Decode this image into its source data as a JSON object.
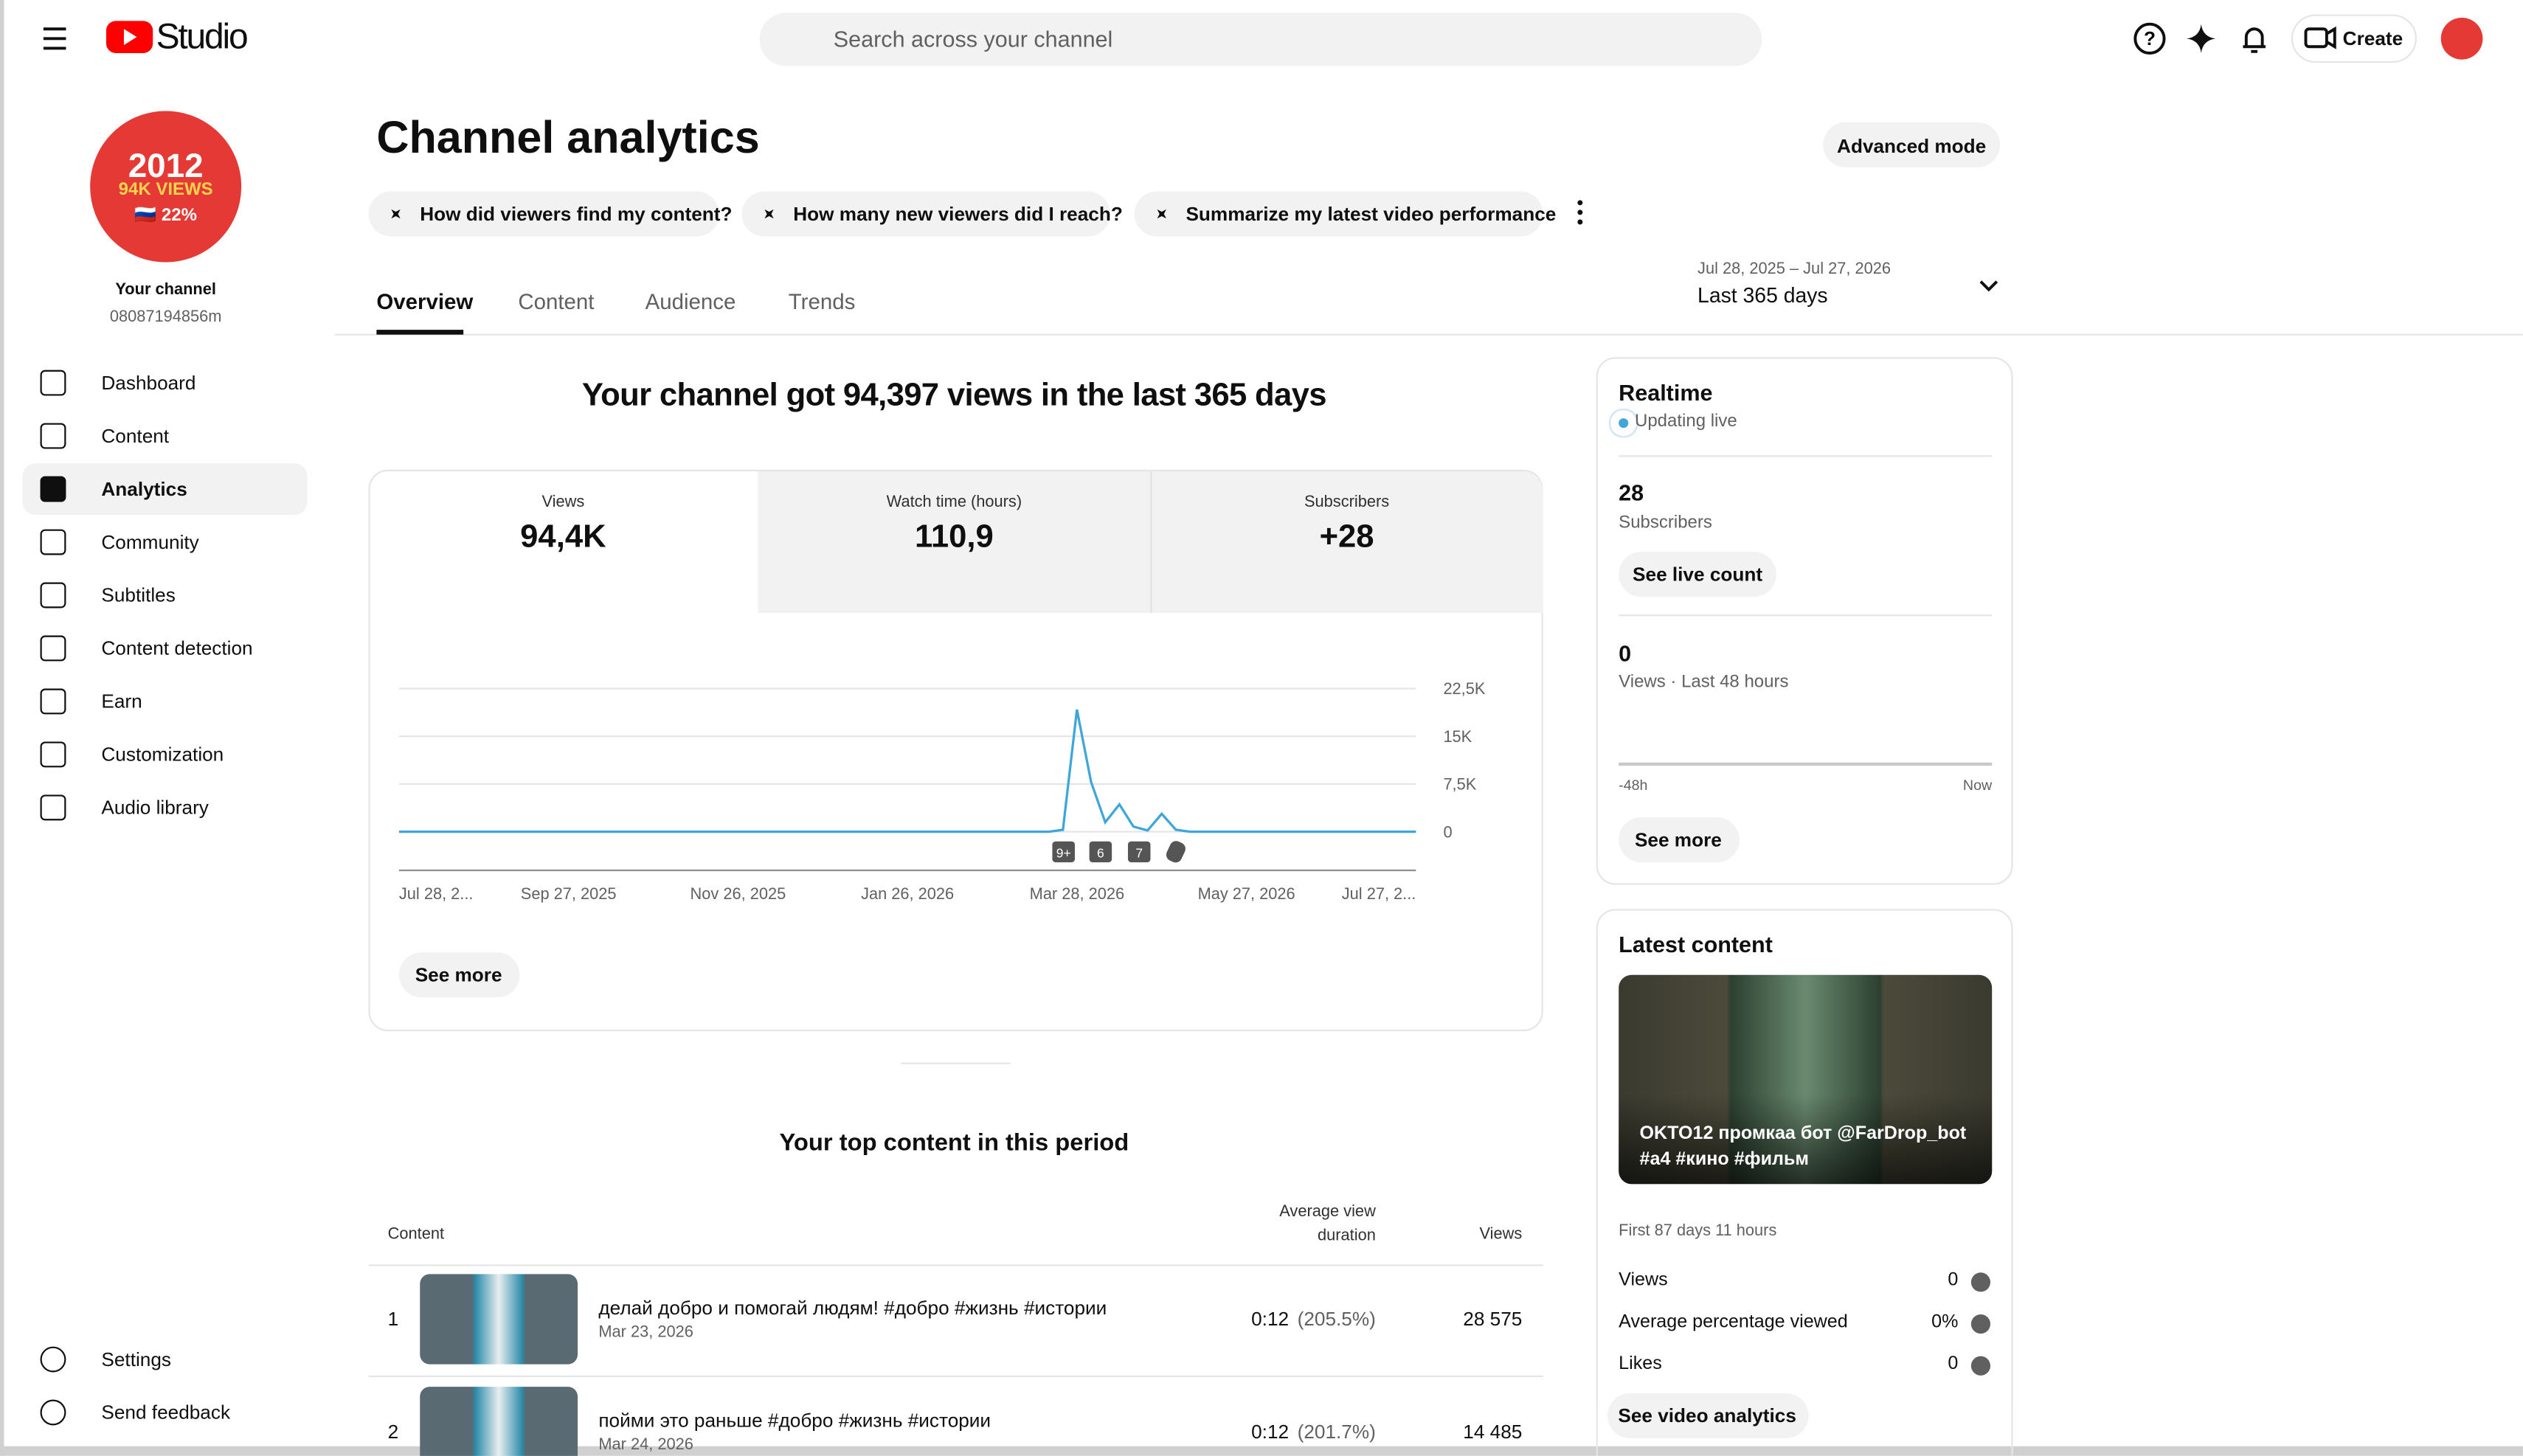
{
  "header": {
    "brand": "Studio",
    "search_placeholder": "Search across your channel",
    "create": "Create"
  },
  "sidebar": {
    "avatar": [
      "2012",
      "94K VIEWS",
      "🇷🇺 22%"
    ],
    "channel_label": "Your channel",
    "channel_handle": "08087194856m",
    "nav": [
      "Dashboard",
      "Content",
      "Analytics",
      "Community",
      "Subtitles",
      "Content detection",
      "Earn",
      "Customization",
      "Audio library"
    ],
    "bottom": [
      "Settings",
      "Send feedback"
    ]
  },
  "main": {
    "title": "Channel analytics",
    "advanced": "Advanced mode",
    "prompts": [
      "How did viewers find my content?",
      "How many new viewers did I reach?",
      "Summarize my latest video performance"
    ],
    "tabs": [
      "Overview",
      "Content",
      "Audience",
      "Trends"
    ],
    "date_range": "Jul 28, 2025 – Jul 27, 2026",
    "period": "Last 365 days",
    "headline": "Your channel got 94,397 views in the last 365 days",
    "metrics": [
      {
        "label": "Views",
        "value": "94,4K"
      },
      {
        "label": "Watch time (hours)",
        "value": "110,9"
      },
      {
        "label": "Subscribers",
        "value": "+28"
      }
    ],
    "see_more": "See more",
    "top_title": "Your top content in this period",
    "table": {
      "headers": [
        "Content",
        "Average view duration",
        "Views"
      ],
      "rows": [
        [
          "1",
          "делай добро и помогай людям! #добро #жизнь #истории",
          "Mar 23, 2026",
          "0:12",
          "(205.5%)",
          "28 575"
        ],
        [
          "2",
          "пойми это раньше #добро #жизнь #истории",
          "Mar 24, 2026",
          "0:12",
          "(201.7%)",
          "14 485"
        ]
      ]
    }
  },
  "realtime": {
    "title": "Realtime",
    "status": "Updating live",
    "subs": "28",
    "subs_label": "Subscribers",
    "live_btn": "See live count",
    "views": "0",
    "views_label": "Views · Last 48 hours",
    "axis": [
      "-48h",
      "Now"
    ],
    "see_more": "See more"
  },
  "latest": {
    "title": "Latest content",
    "caption": "OKTO12 промкаа бот @FarDrop_bot #a4 #кино #фильм",
    "age": "First 87 days 11 hours",
    "stats": [
      [
        "Views",
        "0"
      ],
      [
        "Average percentage viewed",
        "0%"
      ],
      [
        "Likes",
        "0"
      ]
    ],
    "button": "See video analytics"
  },
  "chart_data": {
    "type": "line",
    "color": "#3ea6d9",
    "x_labels": [
      "Jul 28, 2...",
      "Sep 27, 2025",
      "Nov 26, 2025",
      "Jan 26, 2026",
      "Mar 28, 2026",
      "May 27, 2026",
      "Jul 27, 2..."
    ],
    "ylim": [
      0,
      22500
    ],
    "yticks": [
      {
        "value": 22500,
        "label": "22,5K"
      },
      {
        "value": 15000,
        "label": "15K"
      },
      {
        "value": 7500,
        "label": "7,5K"
      },
      0
    ],
    "grid": true,
    "annotations": [
      "9+",
      "6",
      "7"
    ],
    "series": [
      {
        "name": "Views",
        "color": "#3ea6d9",
        "values": [
          0,
          0,
          0,
          0,
          0,
          0,
          0,
          0,
          0,
          0,
          0,
          0,
          0,
          0,
          0,
          0,
          0,
          0,
          0,
          0,
          0,
          0,
          0,
          0,
          0,
          0,
          0,
          0,
          0,
          0,
          0,
          0,
          0,
          0,
          0,
          0,
          0,
          0,
          0,
          0,
          0,
          0,
          0,
          0,
          0,
          0,
          0,
          300,
          19200,
          7800,
          1500,
          4300,
          800,
          200,
          2800,
          300,
          0,
          0,
          0,
          0,
          0,
          0,
          0,
          0,
          0,
          0,
          0,
          0,
          0,
          0,
          0,
          0,
          0
        ]
      }
    ]
  }
}
